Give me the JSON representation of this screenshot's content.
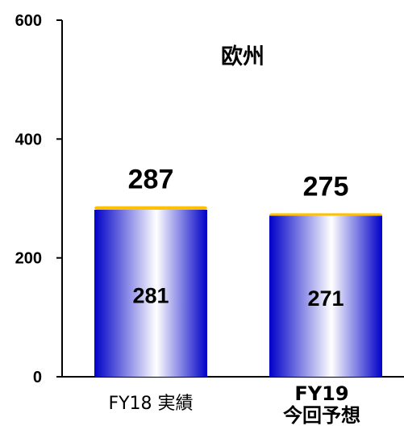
{
  "chart_data": {
    "type": "bar",
    "title": "欧州",
    "categories": [
      "FY18 実績",
      "FY19 今回予想"
    ],
    "category_lines": [
      [
        "FY18 実績"
      ],
      [
        "FY19",
        "今回予想"
      ]
    ],
    "series": [
      {
        "values": [
          281,
          271
        ]
      },
      {
        "values": [
          6,
          4
        ]
      }
    ],
    "totals": [
      287,
      275
    ],
    "data_labels": [
      "281",
      "271"
    ],
    "total_labels": [
      "287",
      "275"
    ],
    "yticks": [
      0,
      200,
      400,
      600
    ],
    "ytick_labels": [
      "0",
      "200",
      "400",
      "600"
    ],
    "ylim": [
      0,
      600
    ],
    "xlabel": "",
    "ylabel": "",
    "grid": false,
    "legend": "none",
    "colors": {
      "bar_edge": "#0000c8",
      "bar_center": "#ffffff",
      "cap": "#ffc000",
      "axis": "#000000"
    }
  }
}
